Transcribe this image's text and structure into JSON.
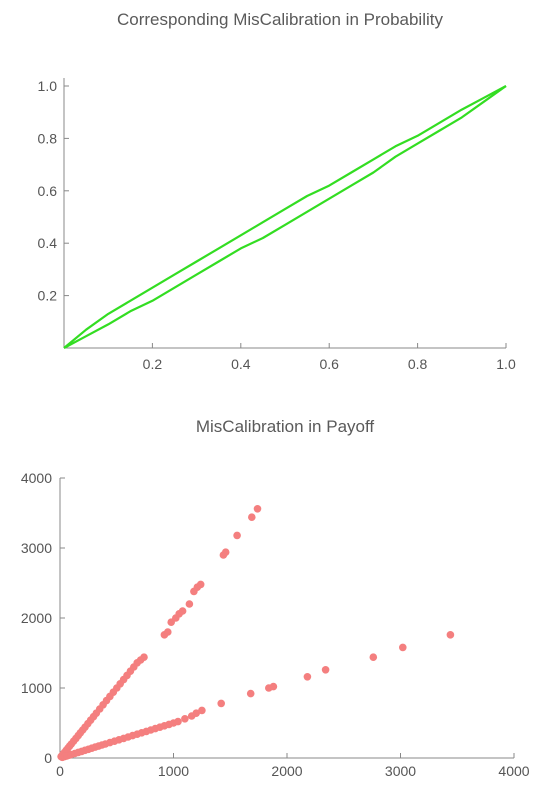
{
  "chart_data": [
    {
      "type": "line",
      "title": "Corresponding MisCalibration in Probability",
      "xlabel": "",
      "ylabel": "",
      "xlim": [
        0,
        1.0
      ],
      "ylim": [
        0,
        1.0
      ],
      "x_ticks": [
        "0.2",
        "0.4",
        "0.6",
        "0.8",
        "1.0"
      ],
      "y_ticks": [
        "0.2",
        "0.4",
        "0.6",
        "0.8",
        "1.0"
      ],
      "grid": false,
      "color": "#33dd22",
      "series": [
        {
          "x": [
            0,
            0.05,
            0.1,
            0.15,
            0.2,
            0.25,
            0.3,
            0.35,
            0.4,
            0.45,
            0.5,
            0.55,
            0.6,
            0.65,
            0.7,
            0.75,
            0.8,
            0.85,
            0.9,
            0.95,
            1.0
          ],
          "values": [
            0,
            0.07,
            0.13,
            0.18,
            0.23,
            0.28,
            0.33,
            0.38,
            0.43,
            0.48,
            0.53,
            0.58,
            0.62,
            0.67,
            0.72,
            0.77,
            0.81,
            0.86,
            0.91,
            0.955,
            1.0
          ]
        },
        {
          "x": [
            0,
            0.05,
            0.1,
            0.15,
            0.2,
            0.25,
            0.3,
            0.35,
            0.4,
            0.45,
            0.5,
            0.55,
            0.6,
            0.65,
            0.7,
            0.75,
            0.8,
            0.85,
            0.9,
            0.95,
            1.0
          ],
          "values": [
            0,
            0.045,
            0.09,
            0.14,
            0.18,
            0.23,
            0.28,
            0.33,
            0.38,
            0.42,
            0.47,
            0.52,
            0.57,
            0.62,
            0.67,
            0.73,
            0.78,
            0.83,
            0.88,
            0.94,
            1.0
          ]
        }
      ]
    },
    {
      "type": "scatter",
      "title": "MisCalibration in Payoff",
      "xlabel": "",
      "ylabel": "",
      "xlim": [
        0,
        4000
      ],
      "ylim": [
        0,
        4000
      ],
      "x_ticks": [
        "0",
        "1000",
        "2000",
        "3000",
        "4000"
      ],
      "y_ticks": [
        "0",
        "1000",
        "2000",
        "3000",
        "4000"
      ],
      "grid": false,
      "color": "#f47f7f",
      "series": [
        {
          "x": [
            10,
            20,
            30,
            40,
            55,
            70,
            85,
            100,
            120,
            140,
            160,
            180,
            200,
            220,
            245,
            270,
            295,
            320,
            350,
            380,
            410,
            440,
            470,
            500,
            530,
            560,
            590,
            620,
            650,
            680,
            710,
            740,
            920,
            950,
            980,
            1020,
            1050,
            1080,
            1140,
            1180,
            1210,
            1240,
            1440,
            1460,
            1560,
            1690,
            1740
          ],
          "values": [
            20,
            40,
            60,
            80,
            110,
            140,
            170,
            200,
            240,
            280,
            320,
            360,
            400,
            440,
            490,
            540,
            590,
            640,
            700,
            760,
            820,
            880,
            940,
            1000,
            1060,
            1120,
            1180,
            1240,
            1300,
            1360,
            1400,
            1440,
            1760,
            1800,
            1940,
            2000,
            2060,
            2100,
            2200,
            2380,
            2440,
            2480,
            2900,
            2940,
            3180,
            3440,
            3560
          ]
        },
        {
          "x": [
            20,
            40,
            60,
            80,
            100,
            130,
            160,
            190,
            220,
            250,
            280,
            310,
            340,
            370,
            400,
            440,
            480,
            520,
            560,
            600,
            640,
            680,
            720,
            760,
            800,
            840,
            880,
            920,
            960,
            1000,
            1040,
            1100,
            1160,
            1200,
            1250,
            1420,
            1680,
            1840,
            1880,
            2180,
            2340,
            2760,
            3020,
            3440
          ],
          "values": [
            10,
            20,
            30,
            40,
            50,
            65,
            80,
            95,
            110,
            125,
            140,
            155,
            170,
            185,
            200,
            220,
            240,
            260,
            280,
            300,
            320,
            340,
            360,
            380,
            400,
            420,
            440,
            460,
            480,
            500,
            520,
            560,
            600,
            640,
            680,
            780,
            920,
            1000,
            1020,
            1160,
            1260,
            1440,
            1580,
            1760
          ]
        }
      ]
    }
  ]
}
